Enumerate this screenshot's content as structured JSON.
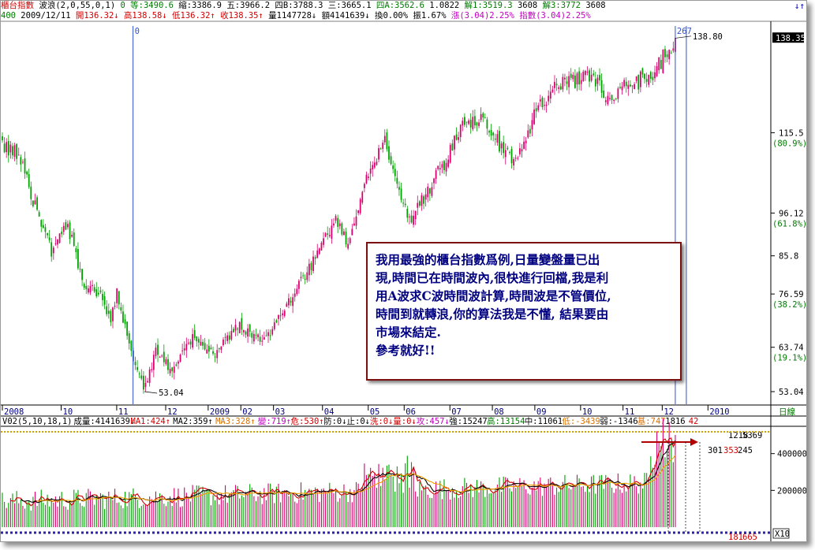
{
  "header": {
    "row1": [
      {
        "text": "櫃台指數",
        "color": "#d10000"
      },
      {
        "text": "波浪(2,0,55,0,1)",
        "color": "#000000"
      },
      {
        "text": "0 等:3490.6",
        "color": "#007a00"
      },
      {
        "text": "縮:3386.9",
        "color": "#000000"
      },
      {
        "text": "五:3966.2",
        "color": "#000000"
      },
      {
        "text": "四B:3788.3",
        "color": "#000000"
      },
      {
        "text": "三:3665.1",
        "color": "#000000"
      },
      {
        "text": "四A:3562.6",
        "color": "#007a00"
      },
      {
        "text": "1.0822",
        "color": "#000000"
      },
      {
        "text": "解1:3519.3",
        "color": "#007a00"
      },
      {
        "text": "3608",
        "color": "#000000"
      },
      {
        "text": "解3:3772",
        "color": "#007a00"
      },
      {
        "text": "3608",
        "color": "#000000"
      }
    ],
    "row2": [
      {
        "text": "400",
        "color": "#007a00"
      },
      {
        "text": "2009/12/11",
        "color": "#000000"
      },
      {
        "text": "開136.32↓",
        "color": "#d10000"
      },
      {
        "text": "高138.58↓",
        "color": "#d10000"
      },
      {
        "text": "低136.32↑",
        "color": "#d10000"
      },
      {
        "text": "收138.35↑",
        "color": "#d10000"
      },
      {
        "text": "量1147728↓",
        "color": "#000000"
      },
      {
        "text": "額4141639↓",
        "color": "#000000"
      },
      {
        "text": "換0.00%",
        "color": "#000000"
      },
      {
        "text": "振1.67%",
        "color": "#000000"
      },
      {
        "text": "漲(3.04)2.25%",
        "color": "#c000c0"
      },
      {
        "text": "指數(3.04)2.25%",
        "color": "#c000c0"
      }
    ],
    "corner": "↓↑"
  },
  "volume_header": [
    {
      "text": "V02(5,10,18,1)",
      "color": "#000000"
    },
    {
      "text": "成量:4141639↓",
      "color": "#000000"
    },
    {
      "text": "MA1:424↑",
      "color": "#d10000"
    },
    {
      "text": "MA2:359↑",
      "color": "#000000"
    },
    {
      "text": "MA3:328↑",
      "color": "#d87000"
    },
    {
      "text": "變:719↑",
      "color": "#c000c0"
    },
    {
      "text": "危:530↑",
      "color": "#d10000"
    },
    {
      "text": "防:0↓",
      "color": "#000000"
    },
    {
      "text": "止:0↓",
      "color": "#000000"
    },
    {
      "text": "洗:0↓",
      "color": "#d10000"
    },
    {
      "text": "量:0↓",
      "color": "#d10000"
    },
    {
      "text": "攻:457↓",
      "color": "#c000c0"
    },
    {
      "text": "強:15247",
      "color": "#000000"
    },
    {
      "text": "高:13154",
      "color": "#007a00"
    },
    {
      "text": "中:11061",
      "color": "#000000"
    },
    {
      "text": "低:-3439",
      "color": "#d87000"
    },
    {
      "text": "弱:-1346",
      "color": "#000000"
    },
    {
      "text": "基:747",
      "color": "#d87000"
    },
    {
      "text": "1816",
      "color": "#000000"
    },
    {
      "text": "42",
      "color": "#d10000"
    }
  ],
  "annotation": {
    "lines": [
      "我用最強的櫃台指數爲例,日量變盤量已出",
      "現,時間已在時間波內,很快進行回檔,我是利",
      "用A波求C波時間波計算,時間波是不管價位,",
      "時間到就轉浪,你的算法我是不懂, 結果要由",
      "市場來結定.",
      "參考就好!!"
    ]
  },
  "colors": {
    "up": "#d8006c",
    "down": "#00a000",
    "wave_line": "#3050d0",
    "ma_red": "#d10000",
    "ma_black": "#000000",
    "ma_orange": "#f0a000"
  },
  "chart_data": [
    {
      "type": "candlestick",
      "series_name": "櫃台指數",
      "y_ticks": [
        53.04,
        63.74,
        76.59,
        85.8,
        96.12,
        115.5
      ],
      "y_ticks_pct": {
        "63.74": "(19.1%)",
        "76.59": "(38.2%)",
        "96.12": "(61.8%)",
        "115.5": "(80.9%)"
      },
      "ylim": [
        50,
        142
      ],
      "x_labels": [
        "2008",
        "10",
        "11",
        "12",
        "2009",
        "02",
        "03",
        "04",
        "05",
        "06",
        "07",
        "08",
        "09",
        "10",
        "11",
        "12",
        "2010",
        "日線"
      ],
      "x_label_months": [
        0,
        1.8,
        3.5,
        5,
        6.3,
        7.3,
        8.3,
        9.8,
        11.2,
        12.3,
        13.7,
        15.0,
        16.3,
        17.7,
        19.0,
        20.2,
        21.6,
        23.1
      ],
      "low_label": "53.04",
      "high_label": "138.80",
      "last_close_label": "138.35",
      "wave_markers": [
        {
          "label": "0",
          "month": 4.0
        },
        {
          "label": "267",
          "month": 20.6
        }
      ],
      "anchor_points": [
        {
          "month": 0.0,
          "close": 113
        },
        {
          "month": 0.5,
          "close": 110
        },
        {
          "month": 1.0,
          "close": 98
        },
        {
          "month": 1.5,
          "close": 87
        },
        {
          "month": 2.0,
          "close": 93
        },
        {
          "month": 2.5,
          "close": 79
        },
        {
          "month": 3.0,
          "close": 76
        },
        {
          "month": 3.3,
          "close": 70
        },
        {
          "month": 3.5,
          "close": 77
        },
        {
          "month": 4.0,
          "close": 61
        },
        {
          "month": 4.35,
          "close": 53.5
        },
        {
          "month": 4.7,
          "close": 63
        },
        {
          "month": 5.2,
          "close": 58
        },
        {
          "month": 5.8,
          "close": 66
        },
        {
          "month": 6.5,
          "close": 62
        },
        {
          "month": 7.2,
          "close": 69
        },
        {
          "month": 8.0,
          "close": 65
        },
        {
          "month": 8.7,
          "close": 74
        },
        {
          "month": 9.5,
          "close": 84
        },
        {
          "month": 10.2,
          "close": 95
        },
        {
          "month": 10.6,
          "close": 88
        },
        {
          "month": 11.3,
          "close": 108
        },
        {
          "month": 11.7,
          "close": 113
        },
        {
          "month": 12.3,
          "close": 98
        },
        {
          "month": 12.5,
          "close": 95
        },
        {
          "month": 13.0,
          "close": 101
        },
        {
          "month": 13.5,
          "close": 108
        },
        {
          "month": 14.2,
          "close": 118
        },
        {
          "month": 14.7,
          "close": 120
        },
        {
          "month": 15.3,
          "close": 111
        },
        {
          "month": 15.7,
          "close": 108
        },
        {
          "month": 16.3,
          "close": 120
        },
        {
          "month": 16.8,
          "close": 126
        },
        {
          "month": 17.4,
          "close": 128
        },
        {
          "month": 17.9,
          "close": 130
        },
        {
          "month": 18.3,
          "close": 126
        },
        {
          "month": 18.6,
          "close": 122
        },
        {
          "month": 19.0,
          "close": 126
        },
        {
          "month": 19.5,
          "close": 128
        },
        {
          "month": 19.9,
          "close": 130
        },
        {
          "month": 20.3,
          "close": 134
        },
        {
          "month": 20.6,
          "close": 138.3
        }
      ]
    },
    {
      "type": "bar",
      "series_name": "成量",
      "y_ticks": [
        200000,
        400000
      ],
      "ylim": [
        0,
        480000
      ],
      "right_labels": [
        "1218",
        "5369",
        "301",
        "353",
        "245",
        "181",
        "665",
        "X10"
      ],
      "ma_names": [
        "MA1",
        "MA2",
        "MA3"
      ]
    }
  ]
}
